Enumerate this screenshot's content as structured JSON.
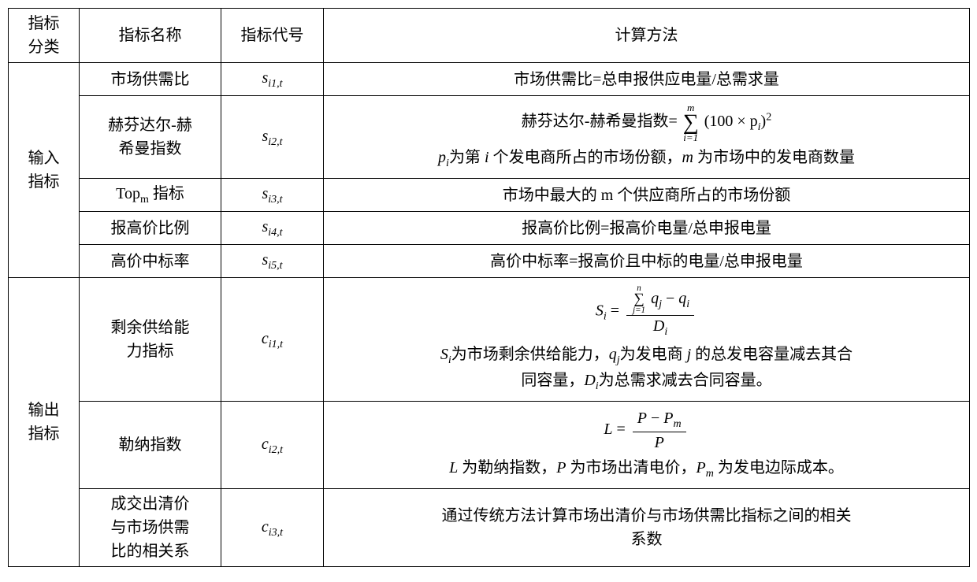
{
  "headers": {
    "category": "指标\n分类",
    "name": "指标名称",
    "code": "指标代号",
    "method": "计算方法"
  },
  "categories": {
    "input": "输入\n指标",
    "output": "输出\n指标"
  },
  "rows": {
    "r1": {
      "name": "市场供需比",
      "code_base": "s",
      "code_sub": "i1,t",
      "method": "市场供需比=总申报供应电量/总需求量"
    },
    "r2": {
      "name": "赫芬达尔-赫\n希曼指数",
      "code_base": "s",
      "code_sub": "i2,t",
      "method_prefix": "赫芬达尔-赫希曼指数= ",
      "sum_top": "m",
      "sum_bot": "i=1",
      "sum_expr": "(100 × p",
      "sum_expr_sub": "i",
      "sum_expr_close": ")",
      "sum_expr_sup": "2",
      "desc_p1": "p",
      "desc_p1_sub": "i",
      "desc_p1_text": "为第 ",
      "desc_i": "i",
      "desc_p1_text2": " 个发电商所占的市场份额，",
      "desc_m": "m",
      "desc_m_text": " 为市场中的发电商数量"
    },
    "r3": {
      "name_pre": "Top",
      "name_sub": "m",
      "name_post": " 指标",
      "code_base": "s",
      "code_sub": "i3,t",
      "method": "市场中最大的 m 个供应商所占的市场份额"
    },
    "r4": {
      "name": "报高价比例",
      "code_base": "s",
      "code_sub": "i4,t",
      "method": "报高价比例=报高价电量/总申报电量"
    },
    "r5": {
      "name": "高价中标率",
      "code_base": "s",
      "code_sub": "i5,t",
      "method": "高价中标率=报高价且中标的电量/总申报电量"
    },
    "r6": {
      "name": "剩余供给能\n力指标",
      "code_base": "c",
      "code_sub": "i1,t",
      "lhs": "S",
      "lhs_sub": "i",
      "eq": " = ",
      "num_sum_top": "n",
      "num_sum_bot": "j=1",
      "num_q": "q",
      "num_q_sub": "j",
      "num_minus": " − ",
      "num_q2": "q",
      "num_q2_sub": "i",
      "den": "D",
      "den_sub": "i",
      "d_S": "S",
      "d_S_sub": "i",
      "d_S_text": "为市场剩余供给能力，",
      "d_q": "q",
      "d_q_sub": "j",
      "d_q_text": "为发电商 ",
      "d_j": "j",
      "d_q_text2": " 的总发电容量减去其合\n同容量，",
      "d_D": "D",
      "d_D_sub": "i",
      "d_D_text": "为总需求减去合同容量。"
    },
    "r7": {
      "name": "勒纳指数",
      "code_base": "c",
      "code_sub": "i2,t",
      "lhs": "L",
      "eq": " = ",
      "num_a": "P",
      "num_minus": " − ",
      "num_b": "P",
      "num_b_sub": "m",
      "den": "P",
      "d_L": "L",
      "d_L_text": " 为勒纳指数，",
      "d_P": "P",
      "d_P_text": " 为市场出清电价，",
      "d_Pm": "P",
      "d_Pm_sub": "m",
      "d_Pm_text": " 为发电边际成本。"
    },
    "r8": {
      "name": "成交出清价\n与市场供需\n比的相关系",
      "code_base": "c",
      "code_sub": "i3,t",
      "method": "通过传统方法计算市场出清价与市场供需比指标之间的相关\n系数"
    }
  },
  "styling": {
    "border_color": "#000000",
    "border_width": "1.5px",
    "bg_color": "#ffffff",
    "font_family": "SimSun, 宋体, serif",
    "math_font": "Times New Roman",
    "base_fontsize": 20
  }
}
